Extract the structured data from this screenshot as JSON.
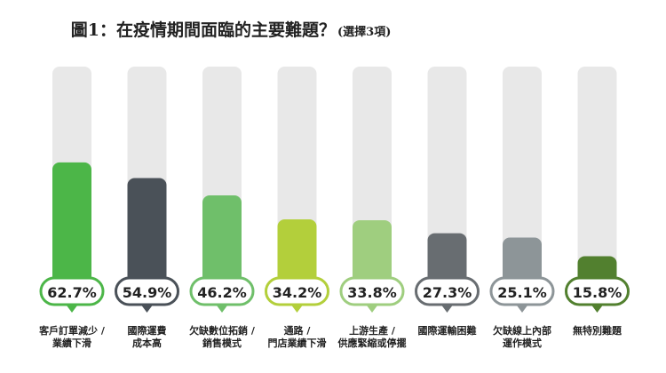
{
  "chart_data": {
    "type": "bar",
    "title": "圖1：在疫情期間面臨的主要難題？",
    "subtitle": "(選擇3項)",
    "categories": [
      [
        "客戶訂單減少 /",
        "業績下滑"
      ],
      [
        "國際運費",
        "成本高"
      ],
      [
        "欠缺數位拓銷 /",
        "銷售模式"
      ],
      [
        "通路 /",
        "門店業績下滑"
      ],
      [
        "上游生產 /",
        "供應緊縮或停擺"
      ],
      [
        "國際運輸困難"
      ],
      [
        "欠缺線上內部",
        "運作模式"
      ],
      [
        "無特別難題"
      ]
    ],
    "values": [
      62.7,
      54.9,
      46.2,
      34.2,
      33.8,
      27.3,
      25.1,
      15.8
    ],
    "value_labels": [
      "62.7%",
      "54.9%",
      "46.2%",
      "34.2%",
      "33.8%",
      "27.3%",
      "25.1%",
      "15.8%"
    ],
    "unit": "%",
    "ylim": [
      0,
      100
    ],
    "grid": false,
    "legend": "none"
  },
  "colors": {
    "track": "#e8e8e8",
    "bars": [
      "#4cb648",
      "#4a5158",
      "#6fbf6a",
      "#b3cf3b",
      "#9fce7f",
      "#686d71",
      "#8d9598",
      "#52802f"
    ],
    "label_text": "#222222"
  }
}
